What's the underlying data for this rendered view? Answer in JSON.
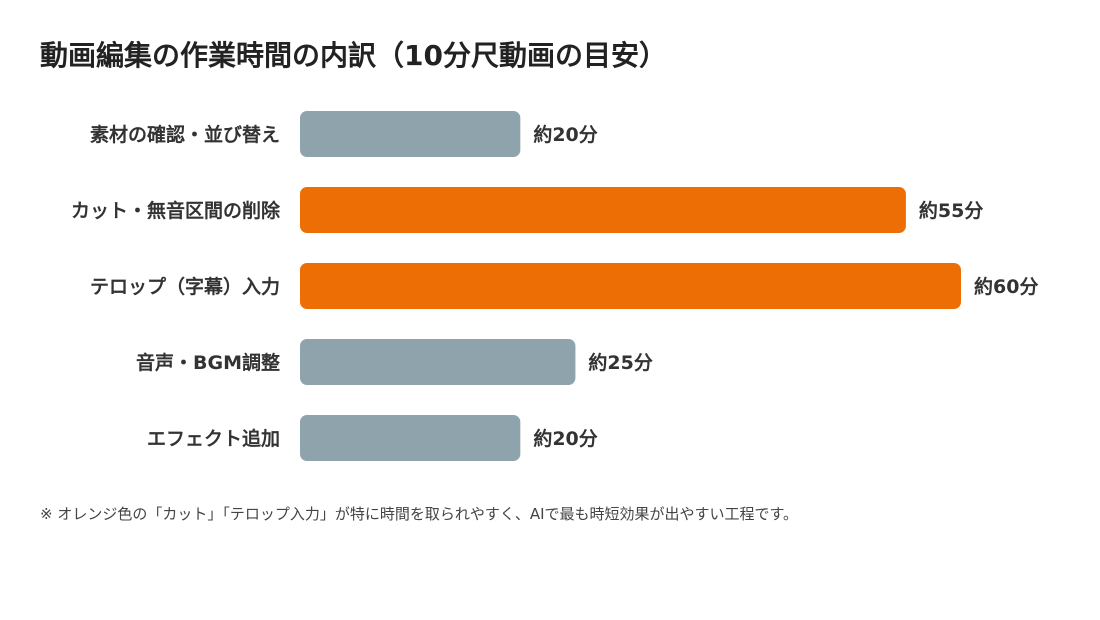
{
  "title": "動画編集の作業時間の内訳（10分尺動画の目安）",
  "note": "※ オレンジ色の「カット」「テロップ入力」が特に時間を取られやすく、AIで最も時短効果が出やすい工程です。",
  "colors": {
    "highlight": "#EE6E06",
    "normal": "#8FA3AD",
    "label": "#333333"
  },
  "chart_data": {
    "type": "bar",
    "orientation": "horizontal",
    "title": "動画編集の作業時間の内訳（10分尺動画の目安）",
    "xlabel": "",
    "ylabel": "",
    "unit": "分",
    "xlim": [
      0,
      60
    ],
    "grid": false,
    "categories": [
      "素材の確認・並び替え",
      "カット・無音区間の削除",
      "テロップ（字幕）入力",
      "音声・BGM調整",
      "エフェクト追加"
    ],
    "values": [
      20,
      55,
      60,
      25,
      20
    ],
    "data_labels": [
      "約20分",
      "約55分",
      "約60分",
      "約25分",
      "約20分"
    ],
    "highlighted": [
      false,
      true,
      true,
      false,
      false
    ]
  }
}
